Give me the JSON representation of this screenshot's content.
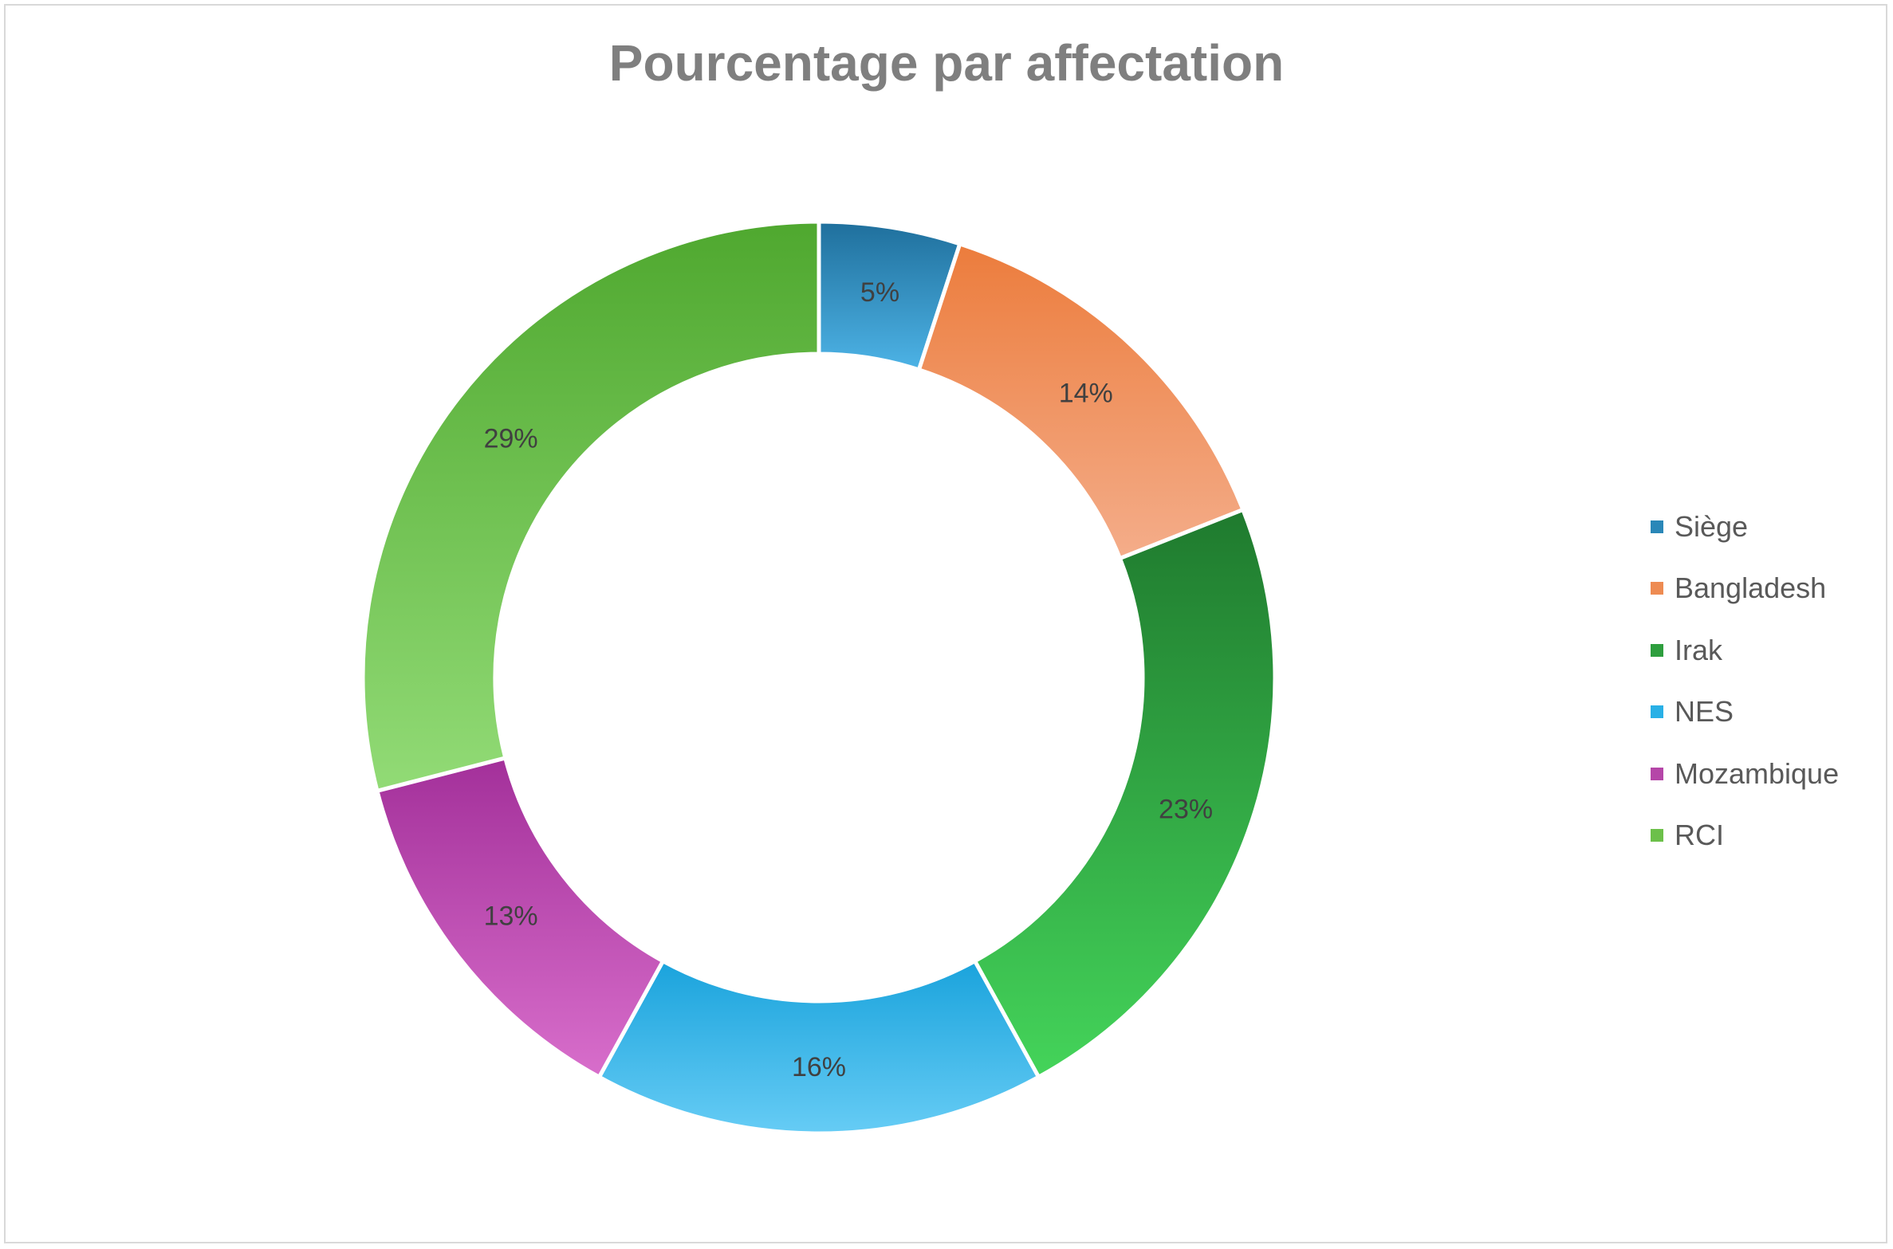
{
  "chart_data": {
    "type": "pie",
    "variant": "doughnut",
    "title": "Pourcentage par affectation",
    "categories": [
      "Siège",
      "Bangladesh",
      "Irak",
      "NES",
      "Mozambique",
      "RCI"
    ],
    "values": [
      5,
      14,
      23,
      16,
      13,
      29
    ],
    "data_labels": [
      "5%",
      "14%",
      "23%",
      "16%",
      "13%",
      "29%"
    ],
    "legend_position": "right",
    "colors": [
      {
        "top": "#1f6f9c",
        "bottom": "#4db3e6"
      },
      {
        "top": "#ec7c3c",
        "bottom": "#f4ad8a"
      },
      {
        "top": "#1f7a2e",
        "bottom": "#44d45a"
      },
      {
        "top": "#1aa3dc",
        "bottom": "#66ccf5"
      },
      {
        "top": "#a3309a",
        "bottom": "#d86ecb"
      },
      {
        "top": "#4fa82f",
        "bottom": "#92db76"
      }
    ],
    "legend_colors": [
      "#2a87b8",
      "#ee8b52",
      "#2e9e3e",
      "#29b0e6",
      "#b546a8",
      "#6cc04a"
    ]
  }
}
